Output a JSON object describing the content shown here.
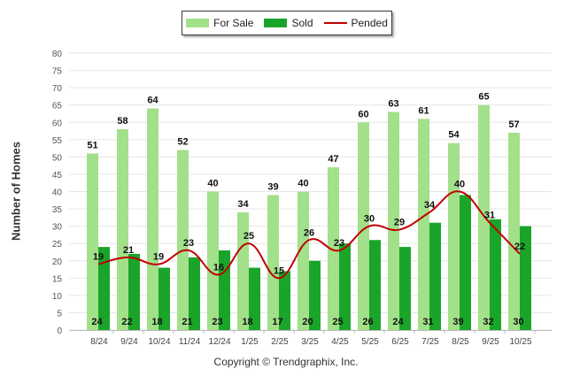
{
  "chart_data": {
    "type": "bar",
    "title": "",
    "xlabel": "",
    "ylabel": "Number of Homes",
    "ylim": [
      0,
      80
    ],
    "ytick_step": 5,
    "categories": [
      "8/24",
      "9/24",
      "10/24",
      "11/24",
      "12/24",
      "1/25",
      "2/25",
      "3/25",
      "4/25",
      "5/25",
      "6/25",
      "7/25",
      "8/25",
      "9/25",
      "10/25"
    ],
    "series": [
      {
        "name": "For Sale",
        "kind": "bar",
        "color": "#a3e08a",
        "values": [
          51,
          58,
          64,
          52,
          40,
          34,
          39,
          40,
          47,
          60,
          63,
          61,
          54,
          65,
          57
        ]
      },
      {
        "name": "Sold",
        "kind": "bar",
        "color": "#1aa52a",
        "values": [
          24,
          22,
          18,
          21,
          23,
          18,
          17,
          20,
          25,
          26,
          24,
          31,
          39,
          32,
          30
        ]
      },
      {
        "name": "Pended",
        "kind": "line",
        "color": "#c00000",
        "values": [
          19,
          21,
          19,
          23,
          16,
          25,
          15,
          26,
          23,
          30,
          29,
          34,
          40,
          31,
          22
        ]
      }
    ],
    "legend_position": "top-center",
    "footer": "Copyright © Trendgraphix, Inc."
  }
}
